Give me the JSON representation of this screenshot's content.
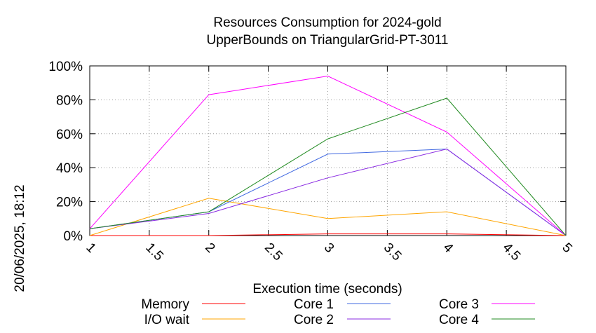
{
  "chart_data": {
    "type": "line",
    "title": [
      "Resources Consumption for 2024-gold",
      "UpperBounds on TriangularGrid-PT-3011"
    ],
    "xlabel": "Execution time (seconds)",
    "ylabel": "",
    "side_label": "20/06/2025, 18:12",
    "xlim": [
      1,
      5
    ],
    "ylim": [
      0,
      100
    ],
    "x_ticks": [
      "1",
      "1.5",
      "2",
      "2.5",
      "3",
      "3.5",
      "4",
      "4.5",
      "5"
    ],
    "y_ticks": [
      "0%",
      "20%",
      "40%",
      "60%",
      "80%",
      "100%"
    ],
    "grid": true,
    "legend_position": "bottom",
    "x": [
      1,
      2,
      3,
      4,
      5
    ],
    "series": [
      {
        "name": "Memory",
        "color": "#ff0000",
        "values": [
          0,
          0,
          1,
          1,
          0
        ]
      },
      {
        "name": "I/O wait",
        "color": "#ffa500",
        "values": [
          0,
          22,
          10,
          14,
          0
        ]
      },
      {
        "name": "Core 1",
        "color": "#4169e1",
        "values": [
          4,
          14,
          48,
          51,
          0
        ]
      },
      {
        "name": "Core 2",
        "color": "#8a2be2",
        "values": [
          4,
          13,
          34,
          51,
          0
        ]
      },
      {
        "name": "Core 3",
        "color": "#ff00ff",
        "values": [
          4,
          83,
          94,
          61,
          0
        ]
      },
      {
        "name": "Core 4",
        "color": "#228b22",
        "values": [
          4,
          14,
          57,
          81,
          0
        ]
      }
    ]
  }
}
